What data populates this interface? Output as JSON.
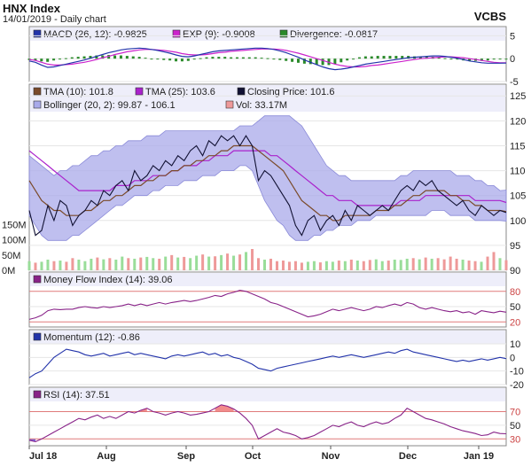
{
  "header": {
    "title": "HNX Index",
    "subtitle": "14/01/2019 - Daily chart",
    "brand": "VCBS"
  },
  "colors": {
    "panel_bg": "#ffffff",
    "legend_bg": "#eeeefa",
    "grid": "#e6e6e6",
    "macd": "#2233aa",
    "exp": "#cc22cc",
    "div_pos": "#2a8a2a",
    "tma10": "#7a4a2a",
    "tma25": "#aa22cc",
    "close": "#111133",
    "bollinger": "#a9aaea",
    "vol": "#99dd99",
    "vol_down": "#ee9999",
    "mfi": "#882288",
    "momentum": "#2233aa",
    "rsi": "#882288",
    "ref_line": "#e07a7a",
    "rsi_hi_fill": "#ee7777",
    "rsi_lo_fill": "#6655dd"
  },
  "chart_data": [
    {
      "type": "line",
      "id": "macd",
      "legend": [
        {
          "label": "MACD (26, 12): -0.9825",
          "color": "#2233aa"
        },
        {
          "label": "EXP (9): -0.9008",
          "color": "#cc22cc"
        },
        {
          "label": "Divergence: -0.0817",
          "color": "#2a8a2a"
        }
      ],
      "ylim": [
        -5,
        7
      ],
      "yticks": [
        "5",
        "0",
        "-5"
      ],
      "series": [
        {
          "name": "MACD",
          "values": [
            -0.5,
            -0.8,
            -1.4,
            -1.9,
            -1.8,
            -1.5,
            -1.2,
            -0.9,
            -0.6,
            -0.3,
            0.1,
            0.5,
            0.9,
            1.3,
            1.6,
            1.9,
            2.1,
            2.2,
            2.3,
            2.2,
            2.0,
            1.8,
            1.5,
            1.2,
            0.8,
            0.5,
            0.4,
            0.6,
            0.9,
            1.2,
            1.5,
            1.7,
            1.8,
            1.9,
            2.0,
            2.1,
            2.2,
            2.3,
            2.3,
            2.2,
            2.0,
            1.7,
            1.3,
            0.8,
            0.3,
            -0.3,
            -0.8,
            -1.3,
            -1.8,
            -2.2,
            -2.4,
            -2.3,
            -2.1,
            -1.8,
            -1.5,
            -1.2,
            -1.0,
            -0.8,
            -0.6,
            -0.4,
            -0.2,
            0.0,
            0.2,
            0.3,
            0.4,
            0.5,
            0.6,
            0.6,
            0.5,
            0.3,
            0.1,
            -0.2,
            -0.5,
            -0.7,
            -0.9,
            -1.0,
            -1.0,
            -1.0,
            -0.98
          ]
        },
        {
          "name": "EXP",
          "values": [
            -0.2,
            -0.4,
            -0.8,
            -1.2,
            -1.4,
            -1.4,
            -1.3,
            -1.2,
            -1.0,
            -0.8,
            -0.5,
            -0.2,
            0.2,
            0.5,
            0.9,
            1.2,
            1.5,
            1.7,
            1.9,
            2.0,
            2.0,
            1.9,
            1.8,
            1.6,
            1.4,
            1.1,
            0.9,
            0.8,
            0.8,
            0.9,
            1.1,
            1.3,
            1.4,
            1.6,
            1.7,
            1.8,
            1.9,
            2.0,
            2.1,
            2.1,
            2.1,
            2.0,
            1.8,
            1.5,
            1.2,
            0.8,
            0.4,
            0.0,
            -0.4,
            -0.8,
            -1.2,
            -1.5,
            -1.7,
            -1.8,
            -1.8,
            -1.7,
            -1.5,
            -1.4,
            -1.2,
            -1.0,
            -0.8,
            -0.6,
            -0.4,
            -0.2,
            0.0,
            0.1,
            0.2,
            0.3,
            0.4,
            0.4,
            0.3,
            0.2,
            0.0,
            -0.2,
            -0.4,
            -0.6,
            -0.8,
            -0.9,
            -0.9
          ]
        }
      ]
    },
    {
      "type": "line",
      "id": "price",
      "legend": [
        {
          "label": "TMA (10): 101.8",
          "color": "#7a4a2a"
        },
        {
          "label": "TMA (25): 103.6",
          "color": "#aa22cc"
        },
        {
          "label": "Closing Price: 101.6",
          "color": "#111133"
        },
        {
          "label": "Bollinger (20, 2): 99.87 - 106.1",
          "color": "#a9aaea"
        },
        {
          "label": "Vol: 33.17M",
          "color": "#ee9999"
        }
      ],
      "ylim": [
        90,
        127
      ],
      "yticks": [
        "125",
        "120",
        "115",
        "110",
        "105",
        "100",
        "95",
        "90"
      ],
      "vol_ticks": [
        "150M",
        "100M",
        "50M",
        "0M"
      ],
      "vol_max": 175,
      "series": [
        {
          "name": "Closing Price",
          "values": [
            102,
            97,
            98,
            103,
            100,
            104,
            103,
            99,
            101,
            102,
            104,
            103,
            106,
            105,
            107,
            108,
            106,
            110,
            108,
            109,
            111,
            110,
            112,
            111,
            113,
            112,
            114,
            115,
            113,
            116,
            115,
            117,
            116,
            117,
            115,
            117,
            115,
            108,
            110,
            109,
            107,
            105,
            103,
            99,
            97,
            100,
            101,
            98,
            100,
            101,
            99,
            102,
            100,
            103,
            102,
            101,
            102,
            103,
            102,
            104,
            106,
            107,
            106,
            108,
            107,
            108,
            106,
            105,
            104,
            103,
            104,
            102,
            101,
            103,
            102,
            101,
            102,
            101.6
          ]
        },
        {
          "name": "TMA (10)",
          "values": [
            108,
            106,
            104,
            103,
            102,
            102,
            101,
            101,
            101,
            102,
            102,
            103,
            104,
            104,
            105,
            105,
            106,
            107,
            107,
            108,
            108,
            109,
            109,
            110,
            110,
            111,
            111,
            112,
            112,
            113,
            113,
            114,
            114,
            115,
            115,
            115,
            115,
            114,
            113,
            112,
            111,
            110,
            108,
            106,
            104,
            103,
            102,
            101,
            101,
            100,
            100,
            101,
            101,
            101,
            101,
            101,
            102,
            102,
            102,
            103,
            103,
            104,
            105,
            105,
            106,
            106,
            106,
            106,
            105,
            105,
            104,
            104,
            103,
            103,
            102,
            102,
            102,
            101.8
          ]
        },
        {
          "name": "TMA (25)",
          "values": [
            114,
            113,
            112,
            111,
            110,
            109,
            108,
            107,
            106,
            106,
            106,
            106,
            106,
            106,
            107,
            107,
            107,
            108,
            108,
            108,
            109,
            109,
            109,
            110,
            110,
            111,
            111,
            111,
            112,
            112,
            113,
            113,
            113,
            114,
            114,
            114,
            114,
            114,
            114,
            113,
            113,
            112,
            111,
            110,
            109,
            108,
            107,
            106,
            105,
            105,
            104,
            104,
            104,
            103,
            103,
            103,
            103,
            103,
            103,
            103,
            104,
            104,
            104,
            104,
            105,
            105,
            105,
            105,
            105,
            105,
            105,
            105,
            104,
            104,
            104,
            104,
            104,
            103.6
          ]
        },
        {
          "name": "Bollinger upper",
          "values": [
            113,
            112,
            111,
            110,
            109,
            110,
            110,
            111,
            111,
            112,
            113,
            113,
            114,
            114,
            115,
            115,
            116,
            116,
            116,
            117,
            117,
            117,
            118,
            118,
            118,
            118,
            118,
            118,
            118,
            118,
            118,
            118,
            118,
            118,
            119,
            119,
            119,
            120,
            121,
            121,
            121,
            121,
            121,
            120,
            119,
            117,
            115,
            113,
            111,
            110,
            109,
            109,
            108,
            108,
            108,
            108,
            108,
            108,
            108,
            108,
            109,
            109,
            110,
            110,
            110,
            110,
            110,
            110,
            110,
            109,
            109,
            109,
            108,
            108,
            107,
            107,
            106,
            106.1
          ]
        },
        {
          "name": "Bollinger lower",
          "values": [
            101,
            99,
            97,
            96,
            96,
            96,
            96,
            97,
            97,
            98,
            99,
            100,
            101,
            102,
            103,
            103,
            104,
            105,
            105,
            105,
            106,
            106,
            107,
            107,
            107,
            108,
            108,
            108,
            109,
            109,
            109,
            110,
            110,
            110,
            111,
            111,
            110,
            107,
            104,
            102,
            100,
            99,
            97,
            96,
            96,
            96,
            97,
            97,
            98,
            98,
            99,
            99,
            99,
            100,
            100,
            100,
            101,
            101,
            101,
            101,
            101,
            101,
            101,
            101,
            101,
            102,
            102,
            102,
            101,
            101,
            101,
            101,
            100,
            100,
            100,
            100,
            100,
            99.87
          ]
        },
        {
          "name": "Vol",
          "values": [
            30,
            25,
            28,
            35,
            30,
            32,
            28,
            40,
            35,
            30,
            38,
            42,
            36,
            40,
            35,
            45,
            40,
            38,
            42,
            44,
            40,
            38,
            45,
            50,
            42,
            44,
            40,
            48,
            52,
            45,
            46,
            50,
            55,
            48,
            52,
            60,
            70,
            40,
            35,
            38,
            30,
            32,
            28,
            30,
            25,
            28,
            30,
            26,
            30,
            28,
            32,
            30,
            35,
            32,
            30,
            34,
            36,
            30,
            32,
            35,
            34,
            38,
            40,
            36,
            42,
            38,
            40,
            36,
            45,
            38,
            35,
            32,
            30,
            28,
            45,
            60,
            40,
            33.17
          ]
        }
      ]
    },
    {
      "type": "line",
      "id": "mfi",
      "legend": [
        {
          "label": "Money Flow Index (14): 39.06",
          "color": "#882288"
        }
      ],
      "ylim": [
        10,
        90
      ],
      "yticks": [
        "80",
        "50",
        "20"
      ],
      "ref_lines": [
        80,
        20
      ],
      "series": [
        {
          "name": "Money Flow Index",
          "values": [
            25,
            28,
            33,
            42,
            45,
            44,
            45,
            45,
            48,
            50,
            48,
            47,
            50,
            48,
            50,
            52,
            55,
            52,
            55,
            52,
            55,
            58,
            55,
            58,
            60,
            62,
            60,
            62,
            65,
            68,
            72,
            70,
            75,
            78,
            82,
            80,
            75,
            70,
            65,
            58,
            55,
            50,
            45,
            40,
            35,
            30,
            32,
            35,
            40,
            45,
            42,
            45,
            48,
            45,
            42,
            45,
            50,
            48,
            52,
            55,
            52,
            58,
            55,
            48,
            45,
            48,
            45,
            42,
            40,
            42,
            38,
            40,
            35,
            42,
            40,
            38,
            41,
            39.06
          ]
        }
      ]
    },
    {
      "type": "line",
      "id": "momentum",
      "legend": [
        {
          "label": "Momentum (12): -0.86",
          "color": "#2233aa"
        }
      ],
      "ylim": [
        -20,
        10
      ],
      "yticks": [
        "10",
        "0",
        "-10",
        "-20"
      ],
      "series": [
        {
          "name": "Momentum",
          "values": [
            -15,
            -12,
            -10,
            -5,
            0,
            3,
            6,
            5,
            4,
            2,
            1,
            2,
            3,
            1,
            2,
            3,
            4,
            2,
            3,
            2,
            1,
            0,
            -1,
            1,
            2,
            1,
            2,
            3,
            4,
            2,
            3,
            1,
            2,
            0,
            -1,
            -3,
            -5,
            -8,
            -9,
            -10,
            -8,
            -7,
            -6,
            -5,
            -4,
            -3,
            -2,
            -1,
            0,
            1,
            0,
            1,
            2,
            1,
            0,
            1,
            2,
            3,
            4,
            3,
            5,
            6,
            4,
            3,
            2,
            1,
            0,
            -1,
            -2,
            -3,
            -2,
            -3,
            -2,
            -1,
            -2,
            -1,
            0,
            -0.86
          ]
        }
      ]
    },
    {
      "type": "line",
      "id": "rsi",
      "legend": [
        {
          "label": "RSI (14): 37.51",
          "color": "#882288"
        }
      ],
      "ylim": [
        20,
        85
      ],
      "yticks": [
        "70",
        "50",
        "30"
      ],
      "ref_lines": [
        70,
        30
      ],
      "xticks": [
        "Jul 18",
        "Aug",
        "Sep",
        "Oct",
        "Nov",
        "Dec",
        "Jan 19"
      ],
      "series": [
        {
          "name": "RSI",
          "values": [
            28,
            26,
            30,
            35,
            40,
            45,
            50,
            55,
            60,
            58,
            62,
            65,
            60,
            63,
            60,
            65,
            70,
            68,
            72,
            75,
            70,
            68,
            65,
            68,
            70,
            68,
            65,
            66,
            68,
            70,
            75,
            80,
            78,
            74,
            68,
            60,
            50,
            30,
            35,
            40,
            45,
            40,
            38,
            35,
            30,
            32,
            35,
            40,
            45,
            50,
            48,
            52,
            55,
            50,
            48,
            52,
            55,
            52,
            54,
            60,
            65,
            75,
            70,
            65,
            60,
            58,
            55,
            52,
            48,
            45,
            42,
            40,
            38,
            35,
            36,
            40,
            38,
            37.51
          ]
        }
      ]
    }
  ]
}
